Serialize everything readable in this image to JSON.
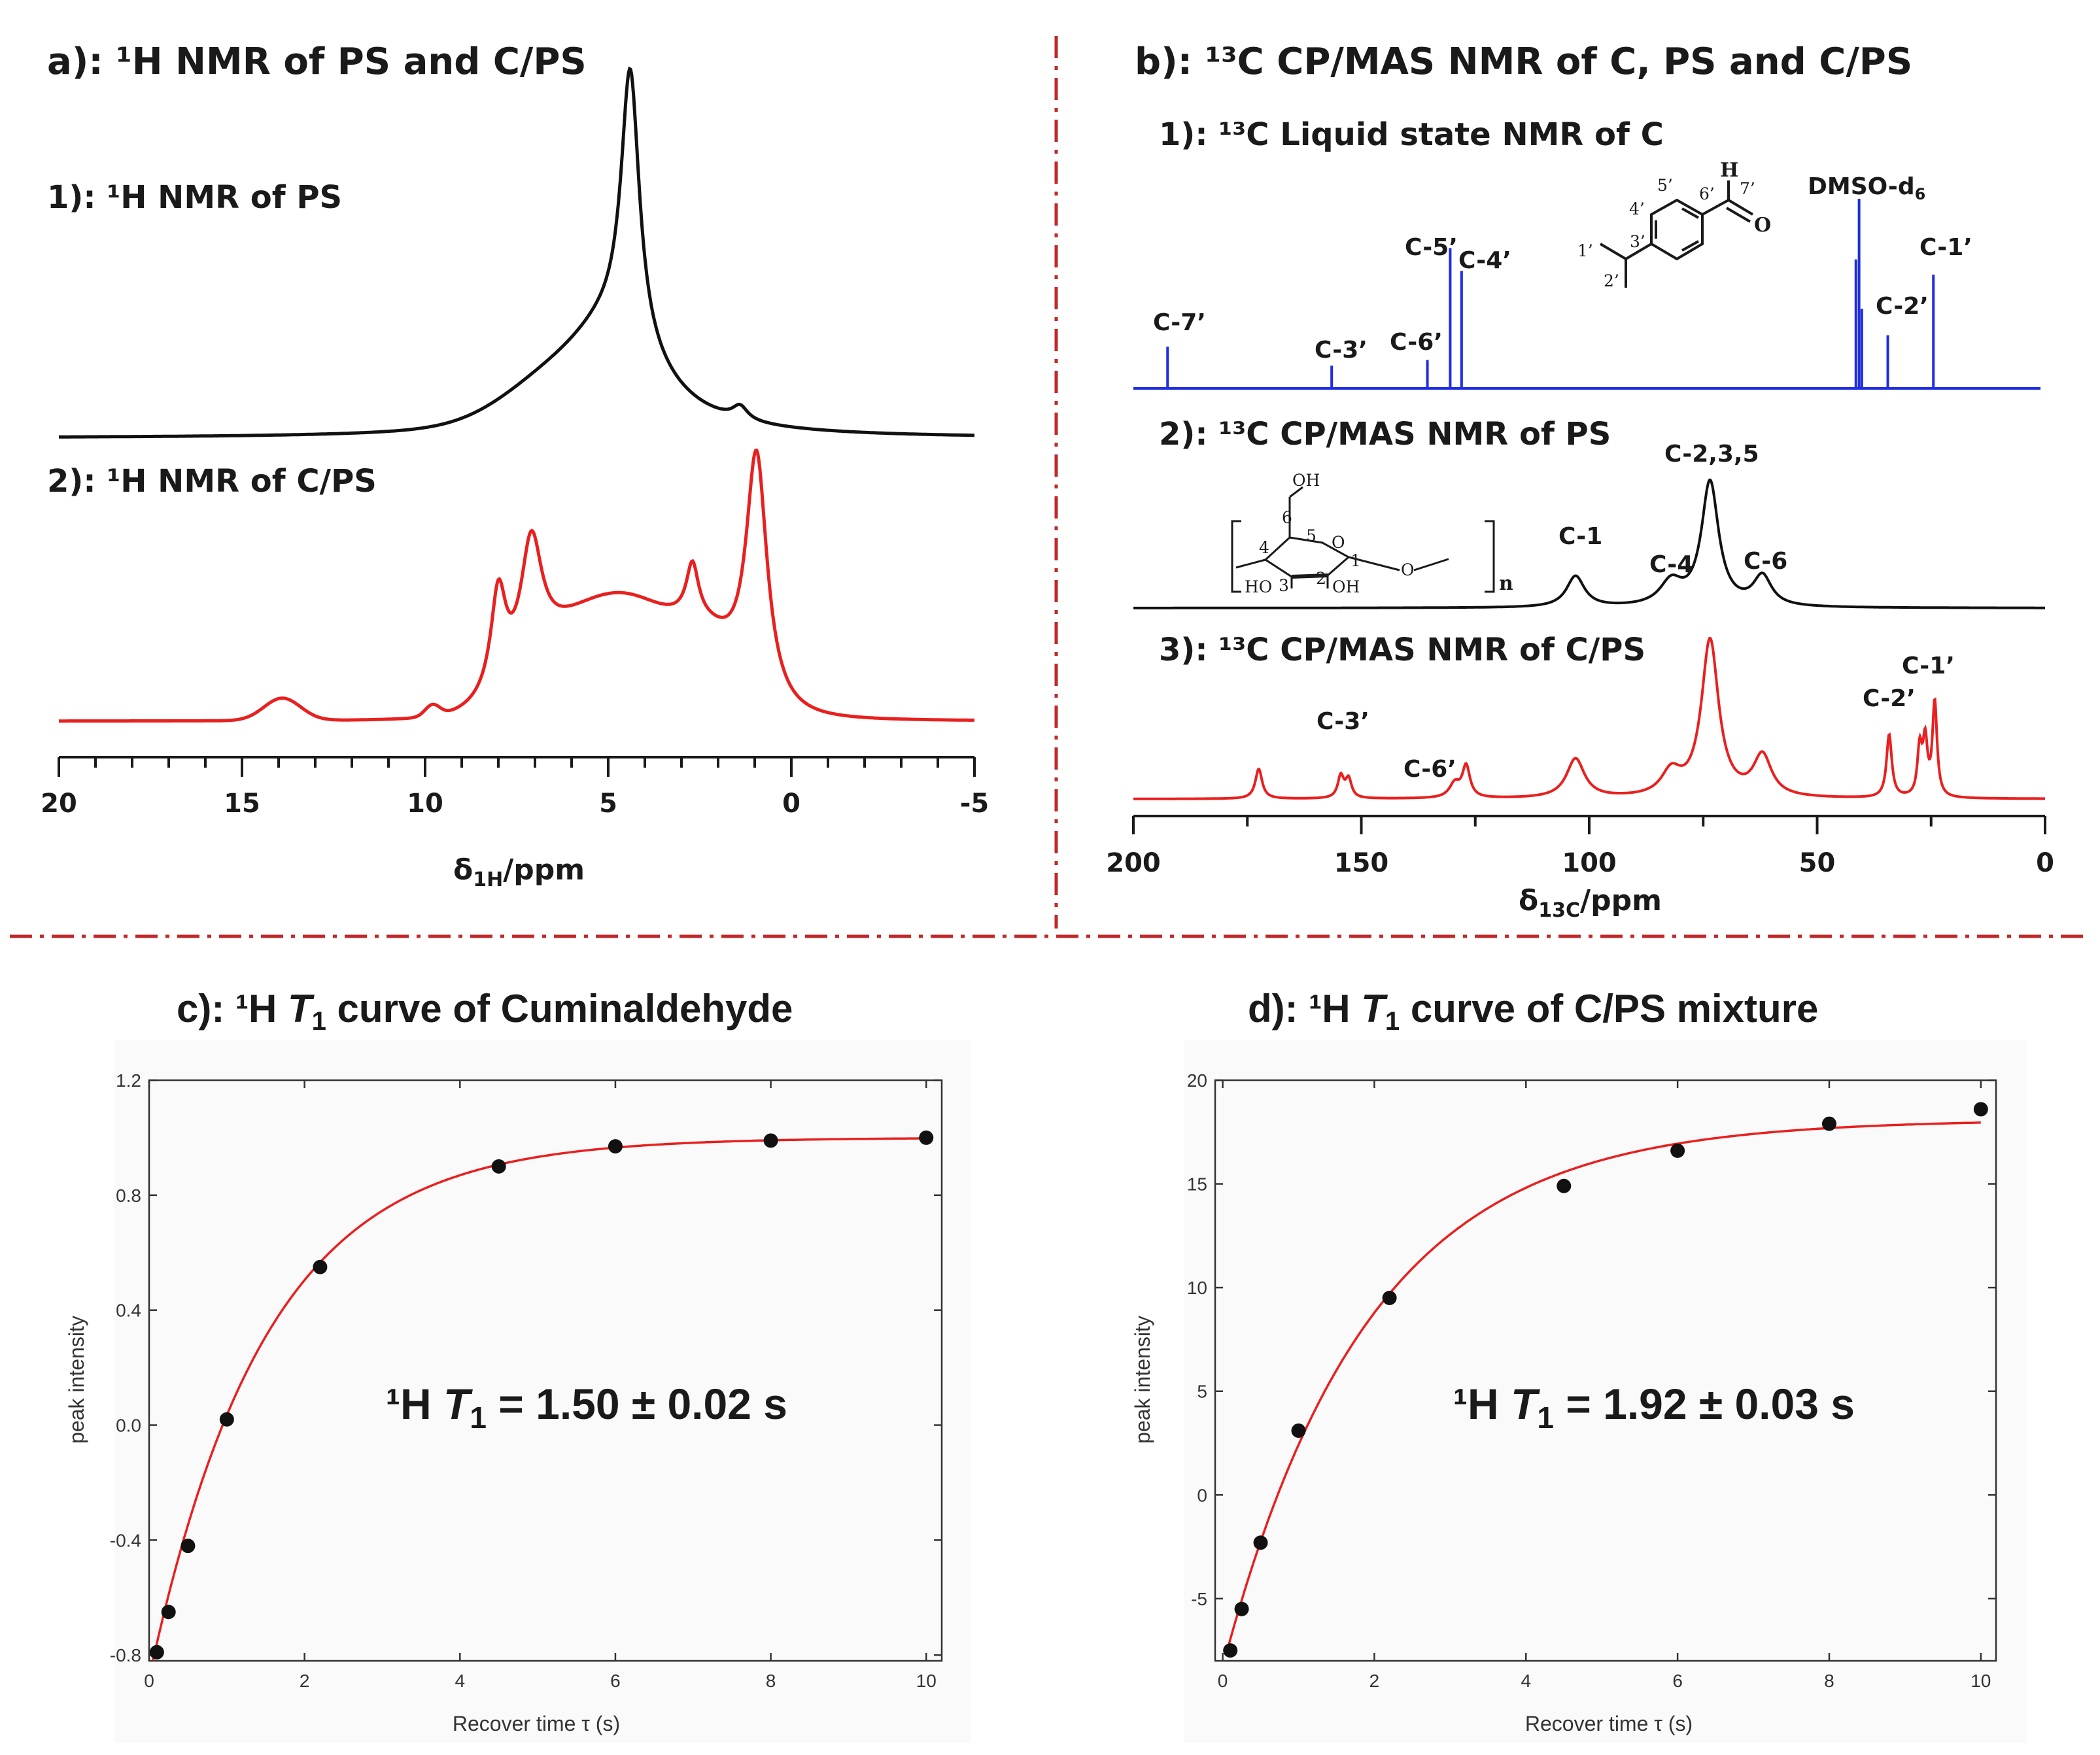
{
  "colors": {
    "black": "#111111",
    "red": "#e8201f",
    "blue": "#1f2ee0",
    "divider": "#c0282a"
  },
  "panel_a": {
    "title": "a): ¹H NMR of PS and C/PS",
    "sub1": "1): ¹H NMR of PS",
    "sub2": "2): ¹H NMR of C/PS",
    "xlabel": "δ1H/ppm"
  },
  "panel_b": {
    "title": "b): ¹³C CP/MAS NMR of C, PS and C/PS",
    "sub1": "1): ¹³C Liquid state NMR of C",
    "sub2": "2): ¹³C CP/MAS NMR of PS",
    "sub3": "3): ¹³C CP/MAS NMR of C/PS",
    "xlabel": "δ13C/ppm",
    "labels_c": [
      "C-7’",
      "C-3’",
      "C-6’",
      "C-5’",
      "C-4’",
      "DMSO-d6",
      "C-2’",
      "C-1’"
    ],
    "labels_ps": [
      "C-2,3,5",
      "C-1",
      "C-4",
      "C-6"
    ],
    "labels_cps": [
      "C-3’",
      "C-6’",
      "C-2’",
      "C-1’"
    ],
    "struct_c": [
      "H",
      "7’",
      "O",
      "6’",
      "5’",
      "4’",
      "3’",
      "1’",
      "2’"
    ],
    "struct_ps": [
      "OH",
      "6",
      "5",
      "4",
      "1",
      "O",
      "HO",
      "3",
      "2",
      "OH",
      "O",
      "n"
    ]
  },
  "chart_data": [
    {
      "type": "line",
      "panel": "a",
      "title": "a): ¹H NMR of PS and C/PS",
      "xlabel": "δ1H/ppm",
      "ylabel": "",
      "xlim": [
        20,
        -5
      ],
      "x_axis_reversed": true,
      "xticks": [
        20,
        15,
        10,
        5,
        0,
        -5
      ],
      "series": [
        {
          "name": "1): ¹H NMR of PS",
          "color": "#111111",
          "peaks": [
            {
              "center": 4.4,
              "height": 1.0,
              "width": 0.3,
              "shape": "lorentzian"
            },
            {
              "center": 4.8,
              "height": 0.36,
              "width": 1.6,
              "shape": "lorentzian"
            },
            {
              "center": 6.5,
              "height": 0.12,
              "width": 1.4,
              "shape": "gaussian"
            },
            {
              "center": 1.4,
              "height": 0.05,
              "width": 0.25,
              "shape": "lorentzian"
            }
          ]
        },
        {
          "name": "2): ¹H NMR of C/PS",
          "color": "#e8201f",
          "peaks": [
            {
              "center": 13.9,
              "height": 0.08,
              "width": 0.5,
              "shape": "gaussian"
            },
            {
              "center": 9.8,
              "height": 0.04,
              "width": 0.2,
              "shape": "gaussian"
            },
            {
              "center": 8.0,
              "height": 0.35,
              "width": 0.25,
              "shape": "lorentzian"
            },
            {
              "center": 7.1,
              "height": 0.43,
              "width": 0.35,
              "shape": "lorentzian"
            },
            {
              "center": 4.6,
              "height": 0.43,
              "width": 1.7,
              "shape": "gaussian"
            },
            {
              "center": 6.8,
              "height": 0.08,
              "width": 1.0,
              "shape": "gaussian"
            },
            {
              "center": 2.7,
              "height": 0.19,
              "width": 0.2,
              "shape": "lorentzian"
            },
            {
              "center": 0.95,
              "height": 0.88,
              "width": 0.35,
              "shape": "lorentzian"
            },
            {
              "center": 2.2,
              "height": 0.14,
              "width": 0.8,
              "shape": "gaussian"
            }
          ]
        }
      ]
    },
    {
      "type": "line",
      "panel": "b",
      "title": "b): ¹³C CP/MAS NMR of C, PS and C/PS",
      "xlabel": "δ13C/ppm",
      "ylabel": "",
      "xlim": [
        200,
        0
      ],
      "x_axis_reversed": true,
      "xticks": [
        200,
        150,
        100,
        50,
        0
      ],
      "series": [
        {
          "name": "1): ¹³C Liquid state NMR of C",
          "color": "#1f2ee0",
          "sticks": [
            {
              "ppm": 192.5,
              "height": 0.22,
              "label": "C-7’"
            },
            {
              "ppm": 156.5,
              "height": 0.12,
              "label": "C-3’"
            },
            {
              "ppm": 135.5,
              "height": 0.15,
              "label": "C-6’"
            },
            {
              "ppm": 130.5,
              "height": 0.74,
              "label": "C-5’"
            },
            {
              "ppm": 128.0,
              "height": 0.62,
              "label": "C-4’"
            },
            {
              "ppm": 41.5,
              "height": 0.68,
              "label": ""
            },
            {
              "ppm": 40.8,
              "height": 1.0,
              "label": "DMSO-d6"
            },
            {
              "ppm": 40.2,
              "height": 0.42,
              "label": ""
            },
            {
              "ppm": 34.5,
              "height": 0.28,
              "label": "C-2’"
            },
            {
              "ppm": 24.5,
              "height": 0.6,
              "label": "C-1’"
            }
          ]
        },
        {
          "name": "2): ¹³C CP/MAS NMR of PS",
          "color": "#111111",
          "peaks": [
            {
              "ppm": 103,
              "height": 0.25,
              "width": 2.4,
              "label": "C-1"
            },
            {
              "ppm": 82,
              "height": 0.19,
              "width": 3.0,
              "label": "C-4"
            },
            {
              "ppm": 73.5,
              "height": 1.0,
              "width": 2.3,
              "label": "C-2,3,5"
            },
            {
              "ppm": 62,
              "height": 0.24,
              "width": 2.4,
              "label": "C-6"
            }
          ]
        },
        {
          "name": "3): ¹³C CP/MAS NMR of C/PS",
          "color": "#e8201f",
          "peaks": [
            {
              "ppm": 172.5,
              "height": 0.19,
              "width": 0.9,
              "label": ""
            },
            {
              "ppm": 154.5,
              "height": 0.14,
              "width": 0.8,
              "label": "C-3’"
            },
            {
              "ppm": 152.8,
              "height": 0.12,
              "width": 0.8,
              "label": ""
            },
            {
              "ppm": 129.5,
              "height": 0.09,
              "width": 1.4,
              "label": "C-6’"
            },
            {
              "ppm": 127.0,
              "height": 0.2,
              "width": 1.0,
              "label": ""
            },
            {
              "ppm": 103,
              "height": 0.25,
              "width": 2.4,
              "label": ""
            },
            {
              "ppm": 82,
              "height": 0.15,
              "width": 2.6,
              "label": ""
            },
            {
              "ppm": 73.5,
              "height": 1.0,
              "width": 2.3,
              "label": ""
            },
            {
              "ppm": 62,
              "height": 0.26,
              "width": 2.4,
              "label": ""
            },
            {
              "ppm": 34.2,
              "height": 0.4,
              "width": 0.7,
              "label": "C-2’"
            },
            {
              "ppm": 27.5,
              "height": 0.3,
              "width": 0.6,
              "label": ""
            },
            {
              "ppm": 26.3,
              "height": 0.34,
              "width": 0.6,
              "label": ""
            },
            {
              "ppm": 24.2,
              "height": 0.6,
              "width": 0.6,
              "label": "C-1’"
            }
          ]
        }
      ]
    },
    {
      "type": "scatter",
      "panel": "c",
      "title": "c): ¹H T1 curve of Cuminaldehyde",
      "xlabel": "Recover time τ (s)",
      "ylabel": "peak intensity",
      "xlim": [
        0,
        10.2
      ],
      "ylim": [
        -0.82,
        1.2
      ],
      "xticks": [
        0,
        2,
        4,
        6,
        8,
        10
      ],
      "yticks": [
        -0.8,
        -0.4,
        0.0,
        0.4,
        0.8,
        1.2
      ],
      "ytick_labels": [
        "-0.8",
        "-0.4",
        "0.0",
        "0.4",
        "0.8",
        "1.2"
      ],
      "annotation": "¹H T1 = 1.50 ± 0.02 s",
      "points": [
        {
          "x": 0.1,
          "y": -0.79
        },
        {
          "x": 0.25,
          "y": -0.65
        },
        {
          "x": 0.5,
          "y": -0.42
        },
        {
          "x": 1.0,
          "y": 0.02
        },
        {
          "x": 2.2,
          "y": 0.55
        },
        {
          "x": 4.5,
          "y": 0.9
        },
        {
          "x": 6.0,
          "y": 0.97
        },
        {
          "x": 8.0,
          "y": 0.99
        },
        {
          "x": 10.0,
          "y": 1.0
        }
      ],
      "fit": {
        "model": "A - B*exp(-x/T1)",
        "A": 1.0,
        "B": 1.88,
        "T1": 1.5,
        "color": "#e8201f"
      }
    },
    {
      "type": "scatter",
      "panel": "d",
      "title": "d): ¹H T1 curve of C/PS mixture",
      "xlabel": "Recover time τ (s)",
      "ylabel": "peak intensity",
      "xlim": [
        -0.1,
        10.2
      ],
      "ylim": [
        -8,
        20
      ],
      "xticks": [
        0,
        2,
        4,
        6,
        8,
        10
      ],
      "yticks": [
        -5,
        0,
        5,
        10,
        15,
        20
      ],
      "ytick_labels": [
        "-5",
        "0",
        "5",
        "10",
        "15",
        "20"
      ],
      "annotation": "¹H T1 = 1.92 ± 0.03 s",
      "points": [
        {
          "x": 0.1,
          "y": -7.5
        },
        {
          "x": 0.25,
          "y": -5.5
        },
        {
          "x": 0.5,
          "y": -2.3
        },
        {
          "x": 1.0,
          "y": 3.1
        },
        {
          "x": 2.2,
          "y": 9.5
        },
        {
          "x": 4.5,
          "y": 14.9
        },
        {
          "x": 6.0,
          "y": 16.6
        },
        {
          "x": 8.0,
          "y": 17.9
        },
        {
          "x": 10.0,
          "y": 18.6
        }
      ],
      "fit": {
        "model": "A - B*exp(-x/T1)",
        "A": 18.1,
        "B": 26.4,
        "T1": 1.92,
        "color": "#e8201f"
      }
    }
  ]
}
